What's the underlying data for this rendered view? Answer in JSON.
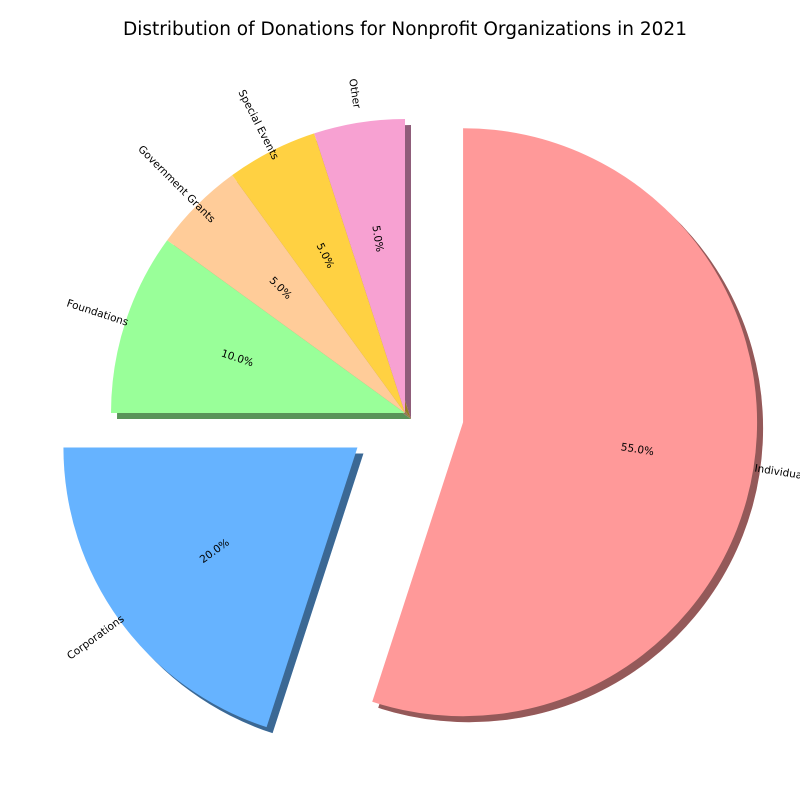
{
  "chart_data": {
    "type": "pie",
    "title": "Distribution of Donations for Nonprofit Organizations in 2021",
    "labels": [
      "Individuals",
      "Corporations",
      "Foundations",
      "Government Grants",
      "Special Events",
      "Other"
    ],
    "values": [
      55.0,
      20.0,
      10.0,
      5.0,
      5.0,
      5.0
    ],
    "value_labels": [
      "55.0%",
      "20.0%",
      "10.0%",
      "5.0%",
      "5.0%",
      "5.0%"
    ],
    "colors": [
      "#ff9999",
      "#66b3ff",
      "#99ff99",
      "#ffcc99",
      "#ffd142",
      "#f7a1d2"
    ],
    "exploded": [
      "Individuals",
      "Corporations"
    ],
    "shadow": true,
    "start_angle": 90,
    "direction": "clockwise",
    "labels_rotated": true,
    "legend": "none"
  }
}
